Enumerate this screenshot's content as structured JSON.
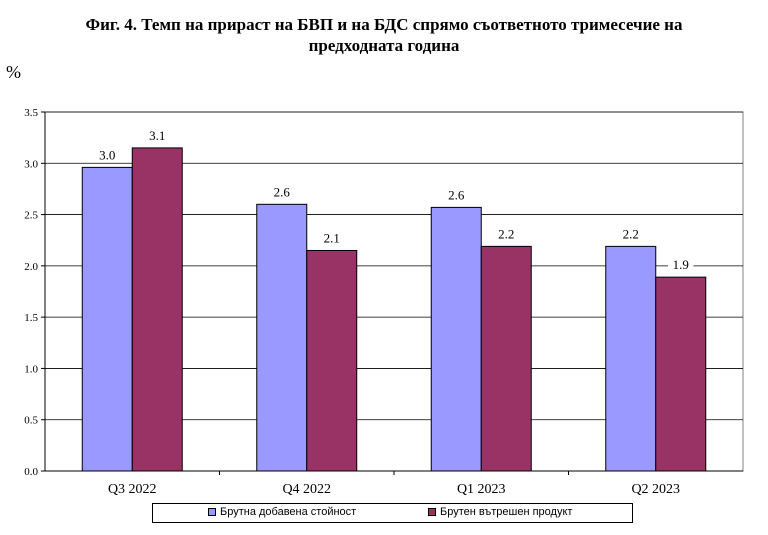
{
  "title_line1": "Фиг. 4. Темп на прираст на БВП и на БДС спрямо съответното тримесечие на",
  "title_line2": "предходната година",
  "unit_label": "%",
  "chart_data": {
    "type": "bar",
    "title": "Фиг. 4. Темп на прираст на БВП и на БДС спрямо съответното тримесечие на предходната година",
    "ylabel": "%",
    "xlabel": "",
    "categories": [
      "Q3 2022",
      "Q4 2022",
      "Q1 2023",
      "Q2 2023"
    ],
    "series": [
      {
        "name": "Брутна добавена стойност",
        "color": "#9999ff",
        "values": [
          2.96,
          2.6,
          2.57,
          2.19
        ],
        "labels": [
          "3.0",
          "2.6",
          "2.6",
          "2.2"
        ]
      },
      {
        "name": "Брутен вътрешен продукт",
        "color": "#993366",
        "values": [
          3.15,
          2.15,
          2.19,
          1.89
        ],
        "labels": [
          "3.1",
          "2.1",
          "2.2",
          "1.9"
        ]
      }
    ],
    "ylim": [
      0,
      3.5
    ],
    "yticks": [
      "0.0",
      "0.5",
      "1.0",
      "1.5",
      "2.0",
      "2.5",
      "3.0",
      "3.5"
    ],
    "grid": true,
    "legend": "bottom"
  }
}
